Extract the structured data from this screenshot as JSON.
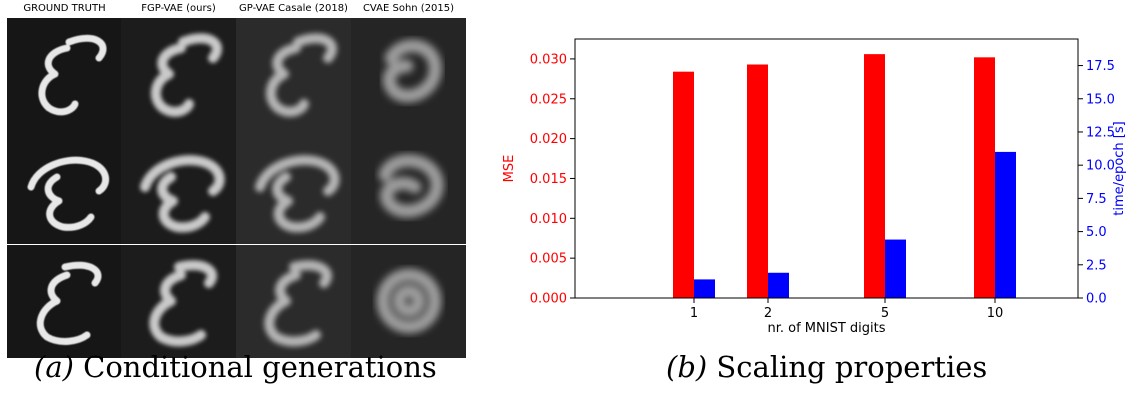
{
  "panel_a": {
    "column_titles": [
      "GROUND TRUTH",
      "FGP-VAE (ours)",
      "GP-VAE Casale (2018)",
      "CVAE Sohn (2015)"
    ],
    "caption_label": "(a)",
    "caption_text": "Conditional generations"
  },
  "panel_b": {
    "caption_label": "(b)",
    "caption_text": "Scaling properties"
  },
  "chart_data": {
    "type": "bar",
    "xlabel": "nr. of MNIST digits",
    "categories": [
      "1",
      "2",
      "5",
      "10"
    ],
    "series": [
      {
        "axis": "left",
        "color": "#ff0000",
        "values": [
          0.0284,
          0.0293,
          0.0306,
          0.0302
        ]
      },
      {
        "axis": "right",
        "color": "#0000ff",
        "values": [
          1.4,
          1.9,
          4.4,
          11.0
        ]
      }
    ],
    "y_left": {
      "label": "MSE",
      "color": "#ff0000",
      "ylim": [
        0,
        0.0325
      ],
      "ticks": [
        0.0,
        0.005,
        0.01,
        0.015,
        0.02,
        0.025,
        0.03
      ],
      "tick_labels": [
        "0.000",
        "0.005",
        "0.010",
        "0.015",
        "0.020",
        "0.025",
        "0.030"
      ]
    },
    "y_right": {
      "label": "time/epoch [s]",
      "color": "#0000ff",
      "ylim": [
        0,
        19.5
      ],
      "ticks": [
        0,
        2.5,
        5,
        7.5,
        10,
        12.5,
        15,
        17.5
      ],
      "tick_labels": [
        "0.0",
        "2.5",
        "5.0",
        "7.5",
        "10.0",
        "12.5",
        "15.0",
        "17.5"
      ]
    },
    "grid": false
  }
}
